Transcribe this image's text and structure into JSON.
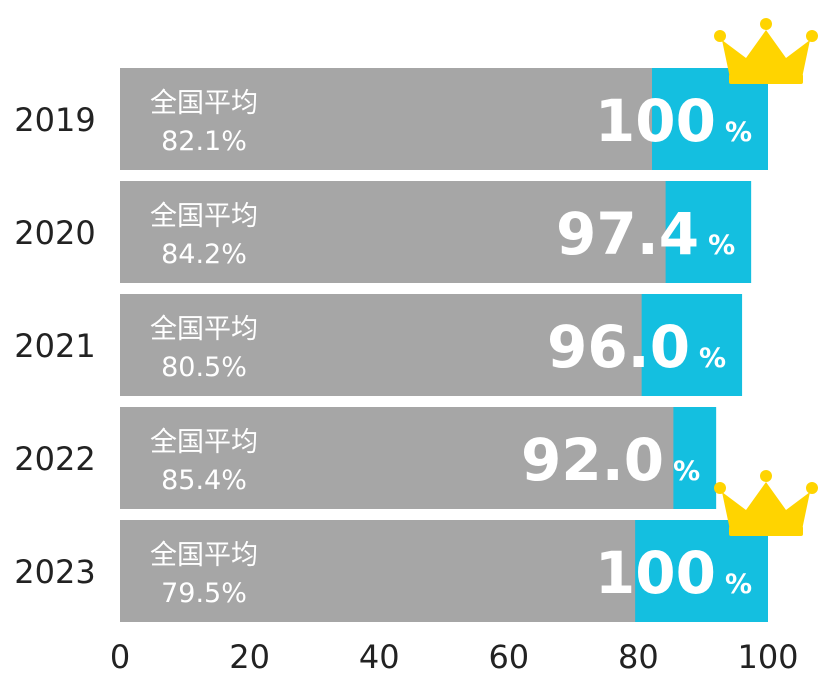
{
  "chart_data": {
    "type": "bar",
    "orientation": "horizontal",
    "categories": [
      "2019",
      "2020",
      "2021",
      "2022",
      "2023"
    ],
    "series": [
      {
        "values": [
          100,
          97.4,
          96.0,
          92.0,
          100
        ]
      },
      {
        "values": [
          82.1,
          84.2,
          80.5,
          85.4,
          79.5
        ]
      }
    ],
    "display_values": [
      "100",
      "97.4",
      "96.0",
      "92.0",
      "100"
    ],
    "national_label": "全国平均",
    "national_display": [
      "82.1%",
      "84.2%",
      "80.5%",
      "85.4%",
      "79.5%"
    ],
    "percent_sign": "%",
    "xlim": [
      0,
      100
    ],
    "x_ticks": [
      0,
      20,
      40,
      60,
      80,
      100
    ],
    "crown_years": [
      "2019",
      "2023"
    ],
    "grid": false,
    "legend": "none"
  },
  "colors": {
    "primary_bar": "#14BFE0",
    "national_bar": "#A6A6A6",
    "crown": "#FFD400",
    "text": "#222222"
  },
  "icons": {
    "crown": "crown-icon"
  }
}
